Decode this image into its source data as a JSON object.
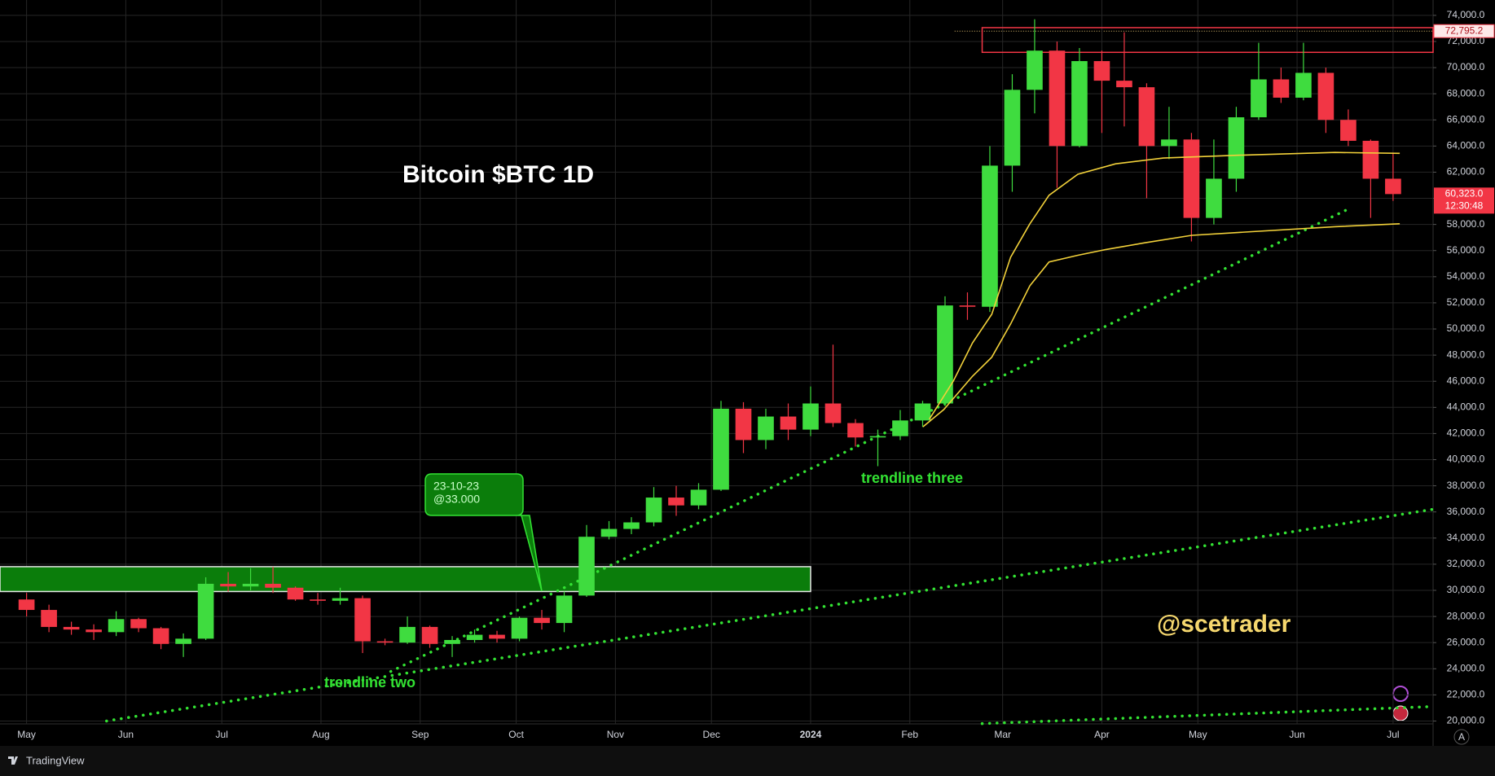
{
  "chart_data": {
    "type": "candlestick",
    "title": "Bitcoin $BTC 1D",
    "watermark": "@scetrader",
    "up_color": "#3fdc3f",
    "down_color": "#f23645",
    "x": [
      0,
      7,
      14,
      21,
      28,
      35,
      42,
      49,
      56,
      63,
      70,
      77,
      84,
      91,
      98,
      105,
      112,
      119,
      126,
      133,
      140,
      147,
      154,
      161,
      168,
      175,
      182,
      189,
      196,
      203,
      210,
      217,
      224,
      231,
      238,
      245,
      252,
      259,
      266,
      273,
      280,
      287,
      294,
      301,
      308,
      315,
      322,
      329,
      336,
      343,
      350,
      357,
      364,
      371,
      378,
      385,
      392,
      399,
      406,
      413,
      420,
      427
    ],
    "open": [
      29300,
      28500,
      27200,
      27000,
      26800,
      27800,
      27100,
      25900,
      26300,
      30500,
      30300,
      30500,
      30200,
      29300,
      29200,
      29400,
      26100,
      26000,
      27200,
      25900,
      26200,
      26600,
      26300,
      27900,
      27500,
      29600,
      34100,
      34700,
      35200,
      37100,
      36500,
      37700,
      43900,
      41500,
      43300,
      42300,
      44300,
      42800,
      41700,
      41800,
      43000,
      44300,
      51800,
      51700,
      62500,
      68300,
      71300,
      64000,
      70500,
      69000,
      68500,
      64000,
      64500,
      58500,
      61500,
      66200,
      69100,
      67700,
      69600,
      66000,
      64400,
      61500
    ],
    "high": [
      29800,
      28900,
      27600,
      27400,
      28400,
      27900,
      27200,
      26700,
      31000,
      31400,
      31700,
      31800,
      30300,
      29800,
      30200,
      29600,
      26300,
      28000,
      27300,
      26500,
      27000,
      26900,
      28000,
      28500,
      29900,
      35000,
      35300,
      35600,
      37900,
      38000,
      38200,
      44500,
      44400,
      43900,
      44300,
      45600,
      48800,
      43100,
      42300,
      43800,
      44500,
      52500,
      52800,
      64000,
      69500,
      73700,
      72000,
      71500,
      71300,
      72700,
      68800,
      67000,
      65000,
      64500,
      67000,
      71900,
      70000,
      71900,
      70000,
      66800,
      64500,
      63500
    ],
    "low": [
      28000,
      26800,
      26600,
      26200,
      26500,
      26800,
      25500,
      24900,
      26200,
      29900,
      30000,
      29800,
      29200,
      28900,
      28900,
      25200,
      25800,
      25900,
      25600,
      24900,
      26000,
      26000,
      26100,
      27000,
      26800,
      29500,
      33900,
      34300,
      34900,
      35700,
      36200,
      37600,
      40500,
      40800,
      41500,
      41800,
      42500,
      41000,
      39500,
      41500,
      42500,
      44100,
      50700,
      51300,
      60500,
      66500,
      60800,
      63900,
      65000,
      65500,
      60000,
      63000,
      56700,
      58000,
      60500,
      66000,
      67300,
      67500,
      65000,
      64000,
      58500,
      59800
    ],
    "close": [
      28500,
      27200,
      27000,
      26800,
      27800,
      27100,
      25900,
      26300,
      30500,
      30300,
      30500,
      30200,
      29300,
      29200,
      29400,
      26100,
      26000,
      27200,
      25900,
      26200,
      26600,
      26300,
      27900,
      27500,
      29600,
      34100,
      34700,
      35200,
      37100,
      36500,
      37700,
      43900,
      41500,
      43300,
      42300,
      44300,
      42800,
      41700,
      41800,
      43000,
      44300,
      51800,
      51700,
      62500,
      68300,
      71300,
      64000,
      70500,
      69000,
      68500,
      64000,
      64500,
      58500,
      61500,
      66200,
      69100,
      67700,
      69600,
      66000,
      64400,
      61500,
      60323
    ],
    "overlays": [
      {
        "color": "#f2d13a",
        "x": [
          282.1,
          289.6,
          295.6,
          301.6,
          307.5,
          313.5,
          319.5,
          328.5,
          340.3,
          355.2,
          379.0,
          408.8,
          429.1
        ],
        "values": [
          43100,
          46020,
          48940,
          51120,
          55500,
          58050,
          60230,
          61840,
          62640,
          63080,
          63300,
          63510,
          63440
        ]
      },
      {
        "color": "#f2d13a",
        "x": [
          280.1,
          286.6,
          295.6,
          301.6,
          307.5,
          313.5,
          319.5,
          328.5,
          337.3,
          349.2,
          364.1,
          379.0,
          408.8,
          429.1
        ],
        "values": [
          42520,
          43830,
          46390,
          47840,
          50390,
          53310,
          55130,
          55640,
          56080,
          56590,
          57170,
          57390,
          57830,
          58050
        ]
      }
    ],
    "trendlines": [
      {
        "color": "#33e233",
        "x": [
          25,
          439.5
        ],
        "values": [
          20000,
          36200
        ]
      },
      {
        "color": "#33e233",
        "x": [
          113.8,
          412.7
        ],
        "values": [
          23790,
          59140
        ]
      },
      {
        "color": "#33e233",
        "x": [
          298.6,
          438.6
        ],
        "values": [
          19800,
          21100
        ]
      }
    ],
    "zones": [
      {
        "color": "#0b7d0b",
        "border": "#e8e8e8",
        "x": [
          -8.3,
          245
        ],
        "values": [
          29910,
          31810
        ]
      },
      {
        "color": "none",
        "border": "#f23645",
        "x": [
          298.6,
          439.5
        ],
        "values": [
          71170,
          73060
        ]
      }
    ],
    "annotations": [
      {
        "text": "trendline two",
        "color": "#33e233"
      },
      {
        "text": "trendline three",
        "color": "#33e233"
      },
      {
        "text": "23-10-23",
        "color": "#c9ffc9"
      },
      {
        "text": "@33.000",
        "color": "#c9ffc9"
      }
    ],
    "price_markers": [
      {
        "value": 72795.2,
        "label": "72,795.2"
      },
      {
        "value": 60323,
        "label": "60,323.0",
        "countdown": "12:30:48"
      }
    ],
    "xlim": [
      -8.3,
      439.5
    ],
    "ylim": [
      19780,
      75175
    ],
    "xticks": [
      {
        "value": 0,
        "label": "May"
      },
      {
        "value": 31,
        "label": "Jun"
      },
      {
        "value": 61,
        "label": "Jul"
      },
      {
        "value": 92,
        "label": "Aug"
      },
      {
        "value": 123,
        "label": "Sep"
      },
      {
        "value": 153,
        "label": "Oct"
      },
      {
        "value": 184,
        "label": "Nov"
      },
      {
        "value": 214,
        "label": "Dec"
      },
      {
        "value": 245,
        "label": "2024"
      },
      {
        "value": 276,
        "label": "Feb"
      },
      {
        "value": 305,
        "label": "Mar"
      },
      {
        "value": 336,
        "label": "Apr"
      },
      {
        "value": 366,
        "label": "May"
      },
      {
        "value": 397,
        "label": "Jun"
      },
      {
        "value": 427,
        "label": "Jul"
      }
    ],
    "yticks": [
      {
        "value": 20000,
        "label": "20,000.0"
      },
      {
        "value": 22000,
        "label": "22,000.0"
      },
      {
        "value": 24000,
        "label": "24,000.0"
      },
      {
        "value": 26000,
        "label": "26,000.0"
      },
      {
        "value": 28000,
        "label": "28,000.0"
      },
      {
        "value": 30000,
        "label": "30,000.0"
      },
      {
        "value": 32000,
        "label": "32,000.0"
      },
      {
        "value": 34000,
        "label": "34,000.0"
      },
      {
        "value": 36000,
        "label": "36,000.0"
      },
      {
        "value": 38000,
        "label": "38,000.0"
      },
      {
        "value": 40000,
        "label": "40,000.0"
      },
      {
        "value": 42000,
        "label": "42,000.0"
      },
      {
        "value": 44000,
        "label": "44,000.0"
      },
      {
        "value": 46000,
        "label": "46,000.0"
      },
      {
        "value": 48000,
        "label": "48,000.0"
      },
      {
        "value": 50000,
        "label": "50,000.0"
      },
      {
        "value": 52000,
        "label": "52,000.0"
      },
      {
        "value": 54000,
        "label": "54,000.0"
      },
      {
        "value": 56000,
        "label": "56,000.0"
      },
      {
        "value": 58000,
        "label": "58,000.0"
      },
      {
        "value": 60000,
        "label": "60,000.0"
      },
      {
        "value": 62000,
        "label": "62,000.0"
      },
      {
        "value": 64000,
        "label": "64,000.0"
      },
      {
        "value": 66000,
        "label": "66,000.0"
      },
      {
        "value": 68000,
        "label": "68,000.0"
      },
      {
        "value": 70000,
        "label": "70,000.0"
      },
      {
        "value": 72000,
        "label": "72,000.0"
      },
      {
        "value": 74000,
        "label": "74,000.0"
      }
    ],
    "grid": true,
    "branding": "TradingView",
    "auto_scale_button": "A"
  }
}
